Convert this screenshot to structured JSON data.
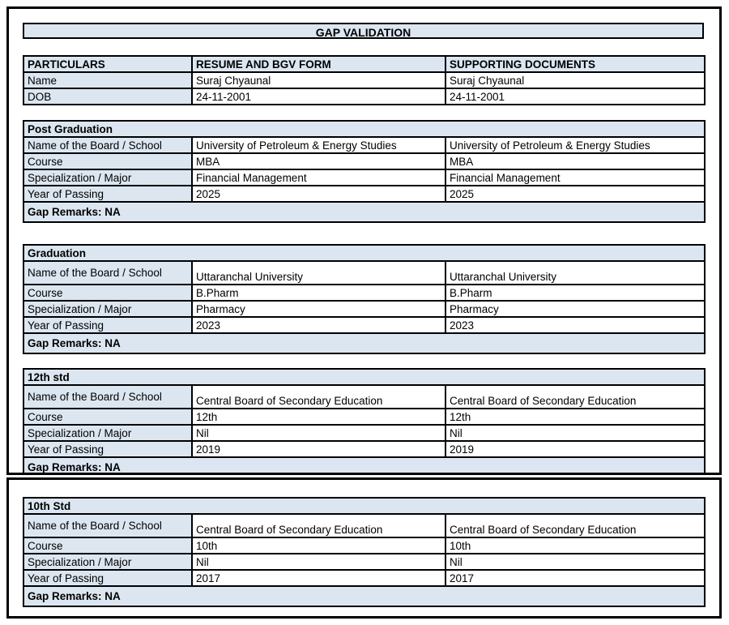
{
  "title": "GAP VALIDATION",
  "colors": {
    "cell_fill_blue": "#dce6f1",
    "border_black": "#000000",
    "background": "#ffffff"
  },
  "identity_table": {
    "headers": [
      "PARTICULARS",
      "RESUME AND BGV FORM",
      "SUPPORTING DOCUMENTS"
    ],
    "rows": [
      {
        "label": "Name",
        "resume": "Suraj Chyaunal",
        "supporting": "Suraj Chyaunal"
      },
      {
        "label": "DOB",
        "resume": "24-11-2001",
        "supporting": "24-11-2001"
      }
    ]
  },
  "sections": [
    {
      "name": "Post Graduation",
      "rows": [
        {
          "label": "Name of the Board / School",
          "resume": "University of Petroleum & Energy Studies",
          "supporting": "University of Petroleum & Energy Studies"
        },
        {
          "label": "Course",
          "resume": "MBA",
          "supporting": "MBA"
        },
        {
          "label": "Specialization / Major",
          "resume": "Financial Management",
          "supporting": "Financial Management"
        },
        {
          "label": "Year of Passing",
          "resume": "2025",
          "supporting": "2025"
        }
      ],
      "gap_remarks": "Gap Remarks: NA"
    },
    {
      "name": "Graduation",
      "rows": [
        {
          "label": "Name of the Board / School",
          "resume": "Uttaranchal University",
          "supporting": "Uttaranchal University"
        },
        {
          "label": "Course",
          "resume": "B.Pharm",
          "supporting": "B.Pharm"
        },
        {
          "label": "Specialization / Major",
          "resume": "Pharmacy",
          "supporting": "Pharmacy"
        },
        {
          "label": "Year of Passing",
          "resume": "2023",
          "supporting": "2023"
        }
      ],
      "gap_remarks": "Gap Remarks: NA"
    },
    {
      "name": "12th std",
      "rows": [
        {
          "label": "Name of the Board / School",
          "resume": "Central Board of Secondary Education",
          "supporting": "Central Board of Secondary Education"
        },
        {
          "label": "Course",
          "resume": "12th",
          "supporting": "12th"
        },
        {
          "label": "Specialization / Major",
          "resume": "Nil",
          "supporting": "Nil"
        },
        {
          "label": "Year of Passing",
          "resume": "2019",
          "supporting": "2019"
        }
      ],
      "gap_remarks": "Gap Remarks: NA"
    },
    {
      "name": "10th Std",
      "rows": [
        {
          "label": "Name of the Board / School",
          "resume": "Central Board of Secondary Education",
          "supporting": "Central Board of Secondary Education"
        },
        {
          "label": "Course",
          "resume": "10th",
          "supporting": "10th"
        },
        {
          "label": "Specialization / Major",
          "resume": "Nil",
          "supporting": "Nil"
        },
        {
          "label": "Year of Passing",
          "resume": "2017",
          "supporting": "2017"
        }
      ],
      "gap_remarks": "Gap Remarks: NA"
    }
  ]
}
